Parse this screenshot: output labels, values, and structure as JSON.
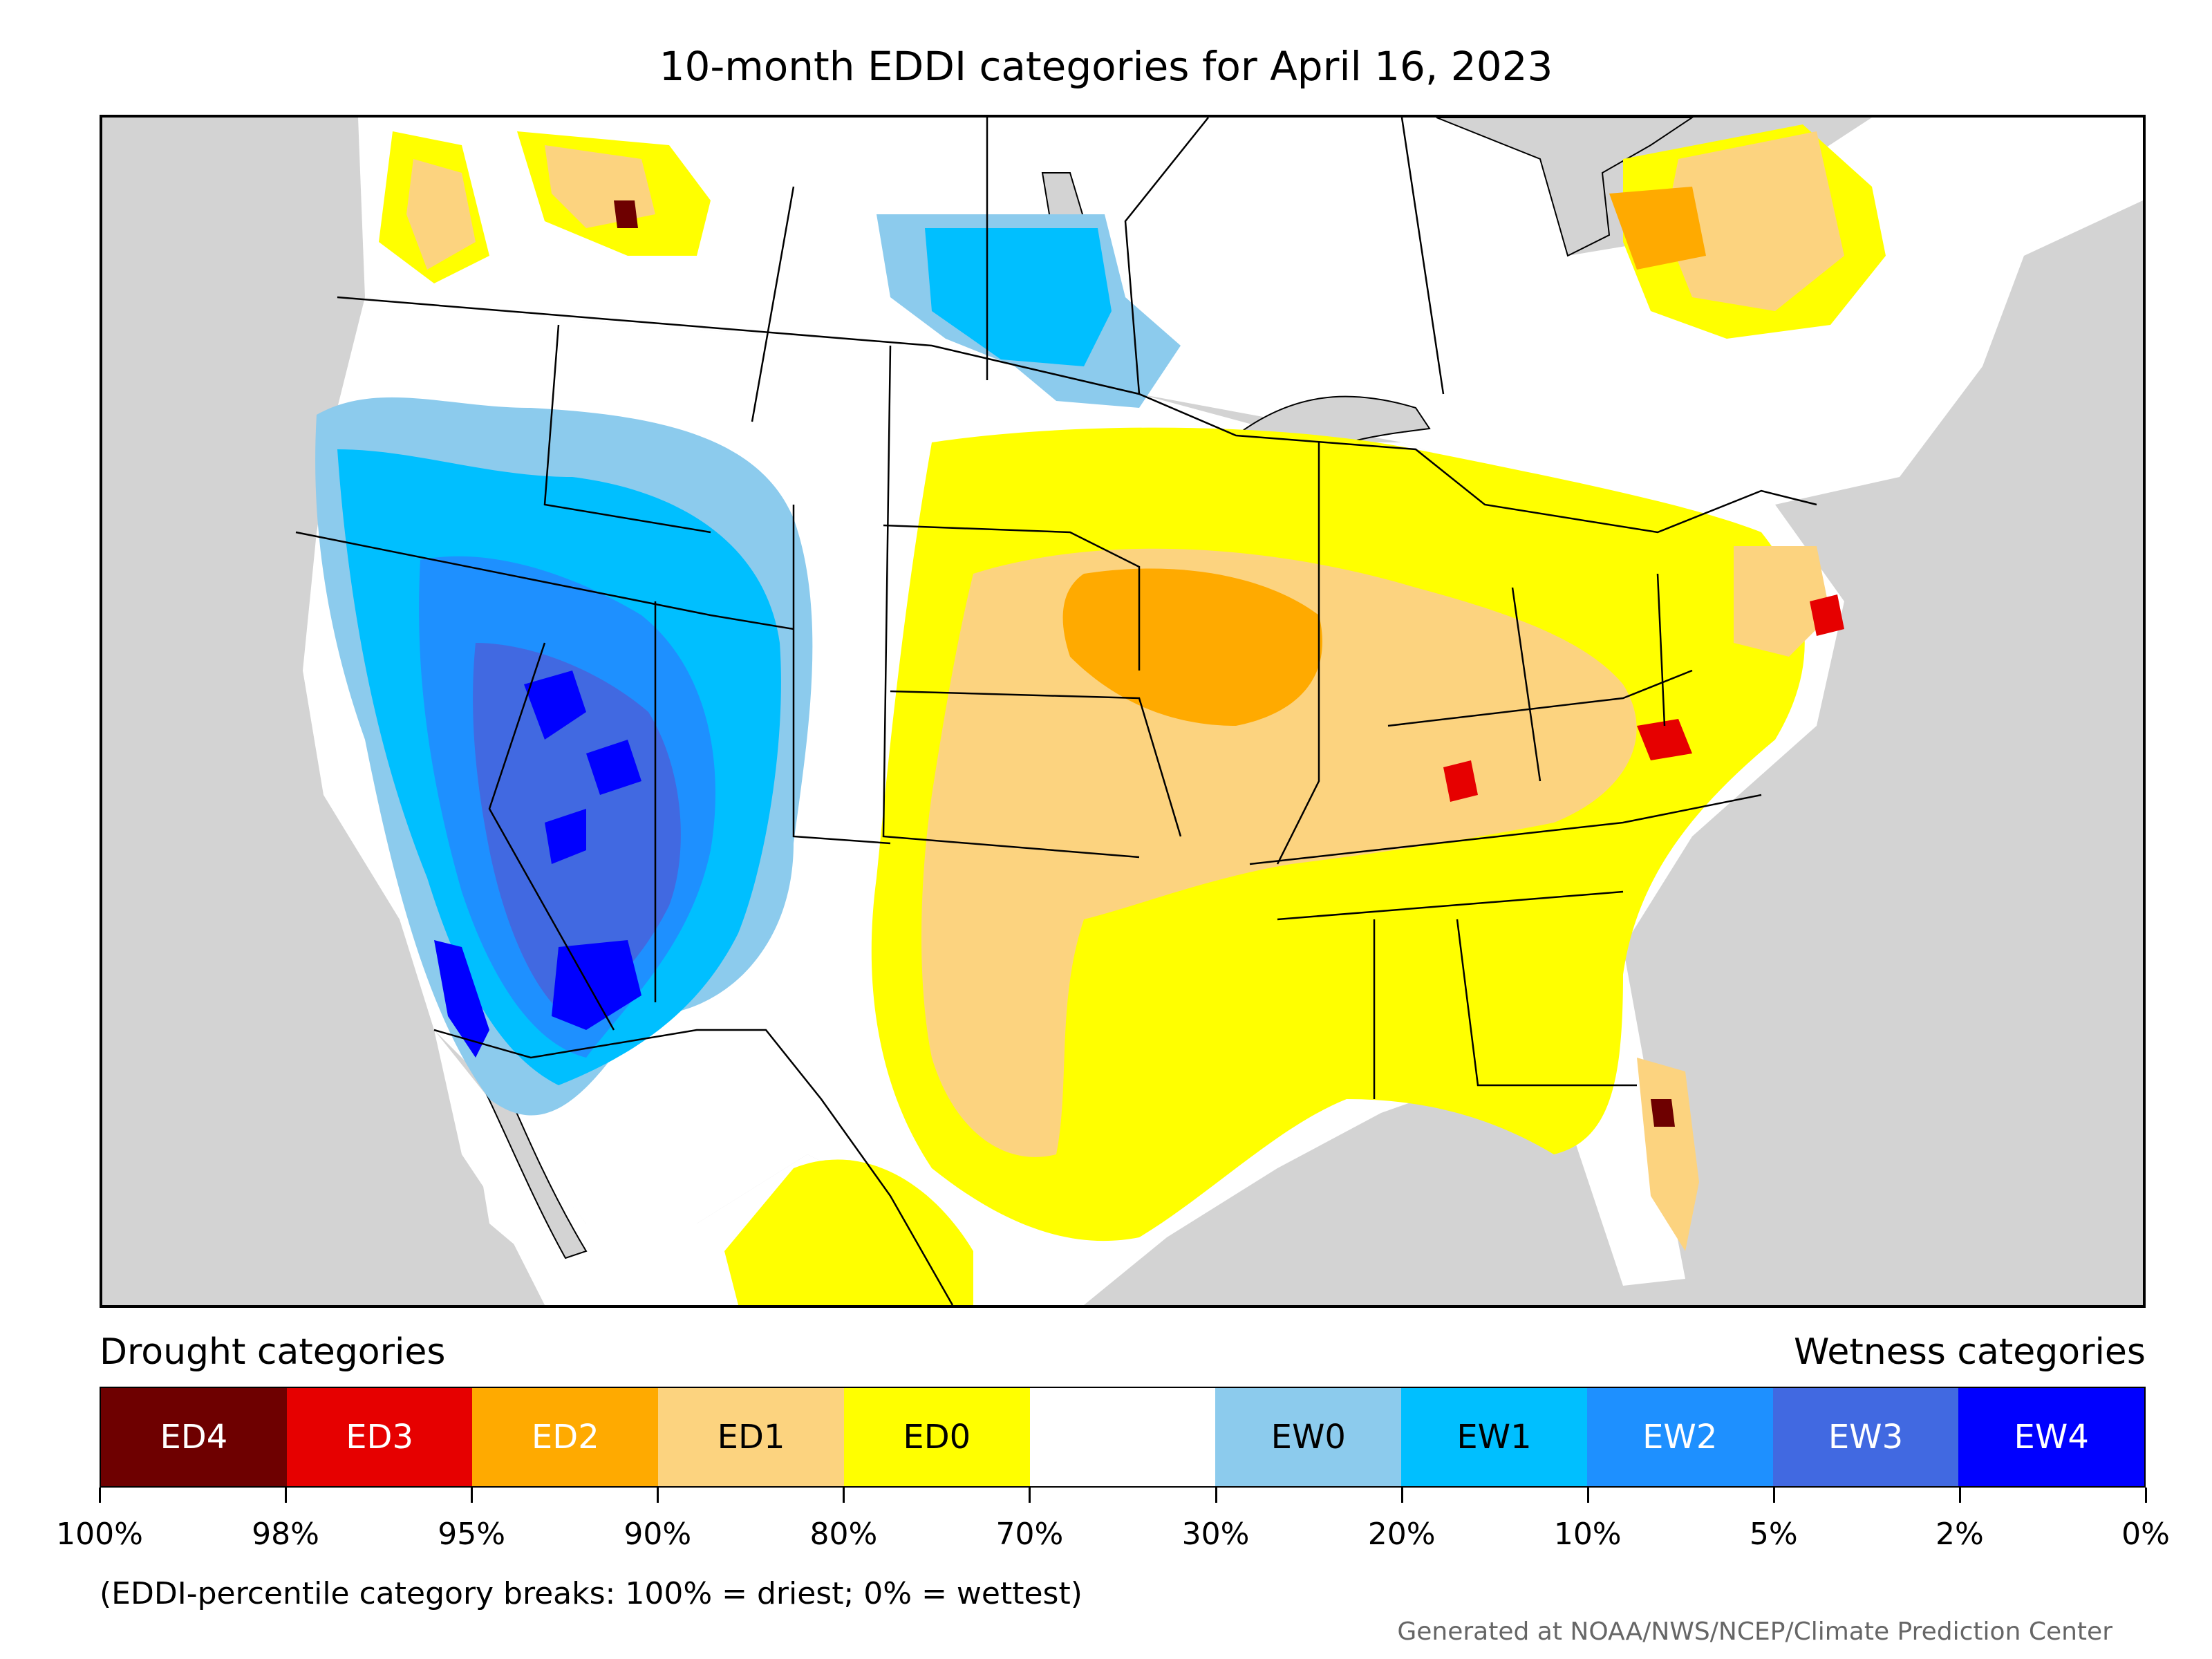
{
  "title": "10-month EDDI categories for April 16, 2023",
  "drought_heading": "Drought categories",
  "wetness_heading": "Wetness categories",
  "categories": [
    {
      "label": "ED4",
      "color": "#6e0000",
      "text_color": "#ffffff"
    },
    {
      "label": "ED3",
      "color": "#e60000",
      "text_color": "#ffffff"
    },
    {
      "label": "ED2",
      "color": "#ffaa00",
      "text_color": "#ffffff"
    },
    {
      "label": "ED1",
      "color": "#fcd37f",
      "text_color": "#000000"
    },
    {
      "label": "ED0",
      "color": "#ffff00",
      "text_color": "#000000"
    },
    {
      "label": "",
      "color": "#ffffff",
      "text_color": "#000000"
    },
    {
      "label": "EW0",
      "color": "#8ccbed",
      "text_color": "#000000"
    },
    {
      "label": "EW1",
      "color": "#00bfff",
      "text_color": "#000000"
    },
    {
      "label": "EW2",
      "color": "#1e90ff",
      "text_color": "#ffffff"
    },
    {
      "label": "EW3",
      "color": "#4169e1",
      "text_color": "#ffffff"
    },
    {
      "label": "EW4",
      "color": "#0000ff",
      "text_color": "#ffffff"
    }
  ],
  "breaks": [
    "100%",
    "98%",
    "95%",
    "90%",
    "80%",
    "70%",
    "30%",
    "20%",
    "10%",
    "5%",
    "2%",
    "0%"
  ],
  "note": "(EDDI-percentile category breaks: 100% = driest; 0% = wettest)",
  "credit": "Generated at NOAA/NWS/NCEP/Climate Prediction Center"
}
